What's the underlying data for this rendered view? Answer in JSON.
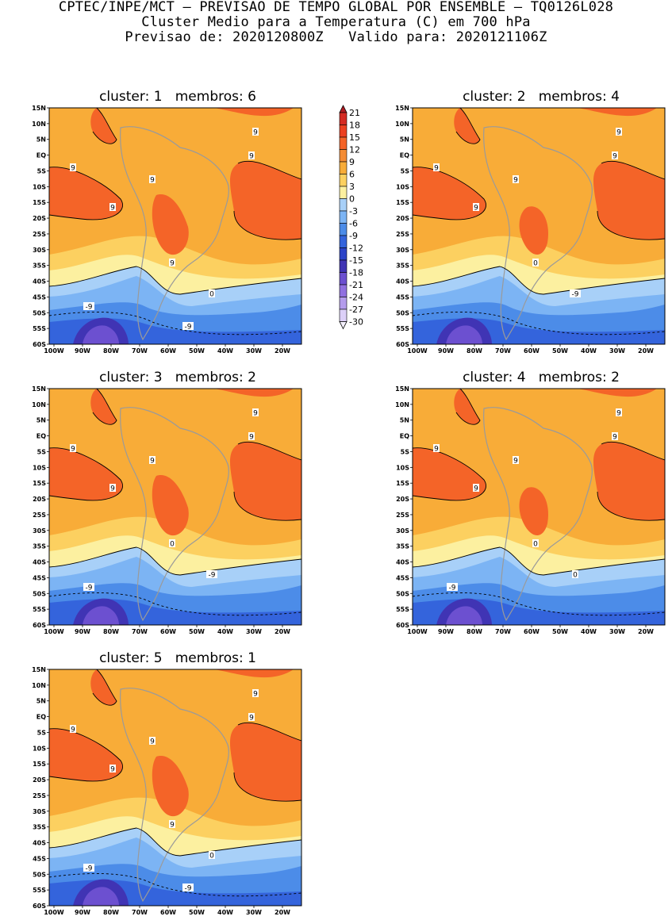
{
  "header": {
    "line1": "CPTEC/INPE/MCT – PREVISAO DE TEMPO GLOBAL POR ENSEMBLE – TQ0126L028",
    "line2": "Cluster Medio para a Temperatura (C) em 700 hPa",
    "line3": "Previsao de: 2020120800Z   Valido para: 2020121106Z"
  },
  "axes": {
    "lat_labels": [
      "15N",
      "10N",
      "5N",
      "EQ",
      "5S",
      "10S",
      "15S",
      "20S",
      "25S",
      "30S",
      "35S",
      "40S",
      "45S",
      "50S",
      "55S",
      "60S"
    ],
    "lon_labels": [
      "100W",
      "90W",
      "80W",
      "70W",
      "60W",
      "50W",
      "40W",
      "30W",
      "20W"
    ]
  },
  "legend": {
    "labels": [
      "21",
      "18",
      "15",
      "12",
      "9",
      "6",
      "3",
      "0",
      "-3",
      "-6",
      "-9",
      "-12",
      "-15",
      "-18",
      "-21",
      "-24",
      "-27",
      "-30"
    ],
    "colors": [
      "#b01c22",
      "#d42a22",
      "#ec4020",
      "#f46428",
      "#f48c34",
      "#f8ac38",
      "#fcd060",
      "#fcf0a0",
      "#a8d0f8",
      "#7cb4f4",
      "#4c8ce8",
      "#3464dc",
      "#2c44c8",
      "#4034b4",
      "#6c50d0",
      "#9070e0",
      "#b49cec",
      "#dcd0f8",
      "#f4f0fc"
    ]
  },
  "panels": [
    {
      "title": "cluster: 1   membros: 6",
      "contour_labels": [
        "9",
        "9",
        "9",
        "9",
        "9",
        "9",
        "0",
        "-9",
        "-9"
      ]
    },
    {
      "title": "cluster: 2   membros: 4",
      "contour_labels": [
        "9",
        "9",
        "9",
        "9",
        "9",
        "0",
        "-9"
      ]
    },
    {
      "title": "cluster: 3   membros: 2",
      "contour_labels": [
        "9",
        "9",
        "9",
        "9",
        "9",
        "0",
        "-9",
        "-9"
      ]
    },
    {
      "title": "cluster: 4   membros: 2",
      "contour_labels": [
        "9",
        "9",
        "9",
        "9",
        "9",
        "0",
        "0",
        "-9"
      ]
    },
    {
      "title": "cluster: 5   membros: 1",
      "contour_labels": [
        "9",
        "9",
        "9",
        "9",
        "9",
        "9",
        "0",
        "-9",
        "-9"
      ]
    }
  ]
}
